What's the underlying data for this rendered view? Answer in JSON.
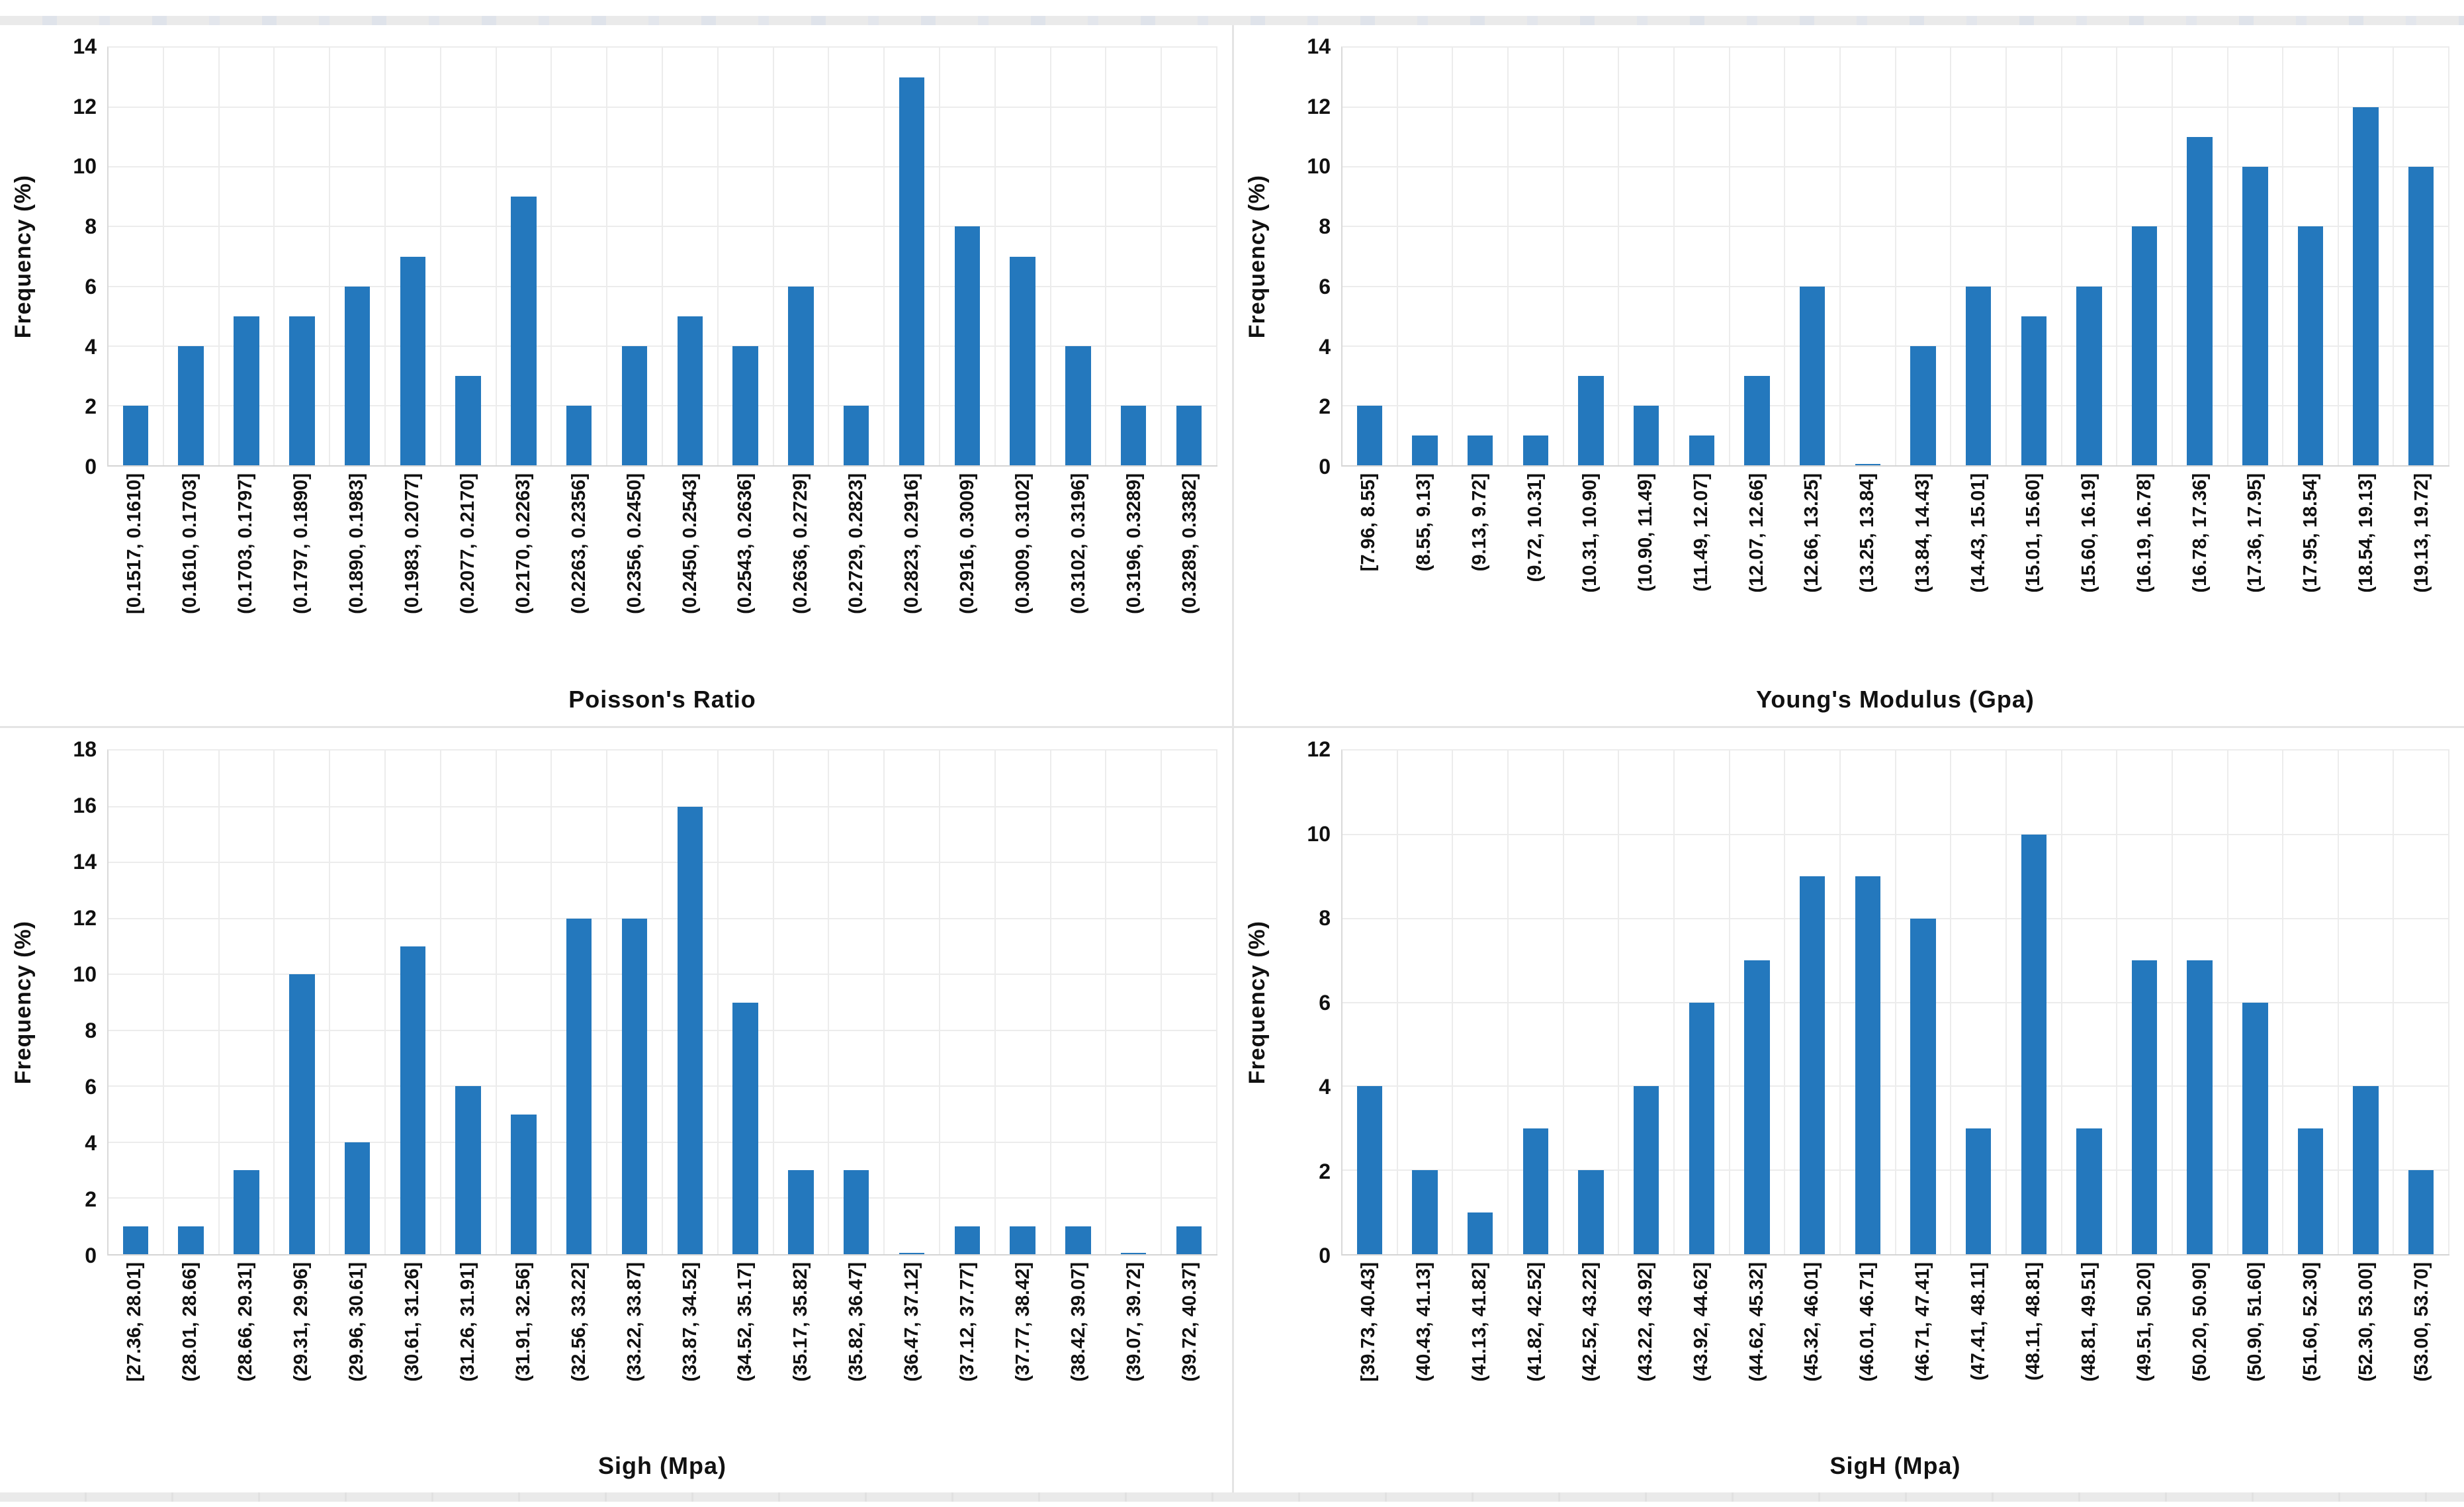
{
  "page": {
    "background": "#ffffff",
    "top_strip_color": "#e9e9e9",
    "bottom_strip_color": "#e9e9e9"
  },
  "colors": {
    "bar": "#2478bd",
    "gridline": "#ececec",
    "plot_border": "#d9d9d9",
    "text": "#111111"
  },
  "chart_data": [
    {
      "type": "bar",
      "title": "",
      "xlabel": "Poisson's Ratio",
      "ylabel": "Frequency (%)",
      "ylim": [
        0,
        14
      ],
      "ystep": 2,
      "yticks": [
        0,
        2,
        4,
        6,
        8,
        10,
        12,
        14
      ],
      "grid": true,
      "legend": "none",
      "categories": [
        "[0.1517, 0.1610]",
        "(0.1610, 0.1703]",
        "(0.1703, 0.1797]",
        "(0.1797, 0.1890]",
        "(0.1890, 0.1983]",
        "(0.1983, 0.2077]",
        "(0.2077, 0.2170]",
        "(0.2170, 0.2263]",
        "(0.2263, 0.2356]",
        "(0.2356, 0.2450]",
        "(0.2450, 0.2543]",
        "(0.2543, 0.2636]",
        "(0.2636, 0.2729]",
        "(0.2729, 0.2823]",
        "(0.2823, 0.2916]",
        "(0.2916, 0.3009]",
        "(0.3009, 0.3102]",
        "(0.3102, 0.3196]",
        "(0.3196, 0.3289]",
        "(0.3289, 0.3382]"
      ],
      "values": [
        2,
        4,
        5,
        5,
        6,
        7,
        3,
        9,
        2,
        4,
        5,
        4,
        6,
        2,
        13,
        8,
        7,
        4,
        2,
        2
      ]
    },
    {
      "type": "bar",
      "title": "",
      "xlabel": "Young's Modulus (Gpa)",
      "ylabel": "Frequency (%)",
      "ylim": [
        0,
        14
      ],
      "ystep": 2,
      "yticks": [
        0,
        2,
        4,
        6,
        8,
        10,
        12,
        14
      ],
      "grid": true,
      "legend": "none",
      "categories": [
        "[7.96, 8.55]",
        "(8.55, 9.13]",
        "(9.13, 9.72]",
        "(9.72, 10.31]",
        "(10.31, 10.90]",
        "(10.90, 11.49]",
        "(11.49, 12.07]",
        "(12.07, 12.66]",
        "(12.66, 13.25]",
        "(13.25, 13.84]",
        "(13.84, 14.43]",
        "(14.43, 15.01]",
        "(15.01, 15.60]",
        "(15.60, 16.19]",
        "(16.19, 16.78]",
        "(16.78, 17.36]",
        "(17.36, 17.95]",
        "(17.95, 18.54]",
        "(18.54, 19.13]",
        "(19.13, 19.72]"
      ],
      "values": [
        2,
        1,
        1,
        1,
        3,
        2,
        1,
        3,
        6,
        0.05,
        4,
        6,
        5,
        6,
        8,
        11,
        10,
        8,
        12,
        10
      ]
    },
    {
      "type": "bar",
      "title": "",
      "xlabel": "Sigh (Mpa)",
      "ylabel": "Frequency (%)",
      "ylim": [
        0,
        18
      ],
      "ystep": 2,
      "yticks": [
        0,
        2,
        4,
        6,
        8,
        10,
        12,
        14,
        16,
        18
      ],
      "grid": true,
      "legend": "none",
      "categories": [
        "[27.36, 28.01]",
        "(28.01, 28.66]",
        "(28.66, 29.31]",
        "(29.31, 29.96]",
        "(29.96, 30.61]",
        "(30.61, 31.26]",
        "(31.26, 31.91]",
        "(31.91, 32.56]",
        "(32.56, 33.22]",
        "(33.22, 33.87]",
        "(33.87, 34.52]",
        "(34.52, 35.17]",
        "(35.17, 35.82]",
        "(35.82, 36.47]",
        "(36.47, 37.12]",
        "(37.12, 37.77]",
        "(37.77, 38.42]",
        "(38.42, 39.07]",
        "(39.07, 39.72]",
        "(39.72, 40.37]"
      ],
      "values": [
        1,
        1,
        3,
        10,
        4,
        11,
        6,
        5,
        12,
        12,
        16,
        9,
        3,
        3,
        0.05,
        1,
        1,
        1,
        0.05,
        1
      ]
    },
    {
      "type": "bar",
      "title": "",
      "xlabel": "SigH (Mpa)",
      "ylabel": "Frequency (%)",
      "ylim": [
        0,
        12
      ],
      "ystep": 2,
      "yticks": [
        0,
        2,
        4,
        6,
        8,
        10,
        12
      ],
      "grid": true,
      "legend": "none",
      "categories": [
        "[39.73, 40.43]",
        "(40.43, 41.13]",
        "(41.13, 41.82]",
        "(41.82, 42.52]",
        "(42.52, 43.22]",
        "(43.22, 43.92]",
        "(43.92, 44.62]",
        "(44.62, 45.32]",
        "(45.32, 46.01]",
        "(46.01, 46.71]",
        "(46.71, 47.41]",
        "(47.41, 48.11]",
        "(48.11, 48.81]",
        "(48.81, 49.51]",
        "(49.51, 50.20]",
        "(50.20, 50.90]",
        "(50.90, 51.60]",
        "(51.60, 52.30]",
        "(52.30, 53.00]",
        "(53.00, 53.70]"
      ],
      "values": [
        4,
        2,
        1,
        3,
        2,
        4,
        6,
        7,
        9,
        9,
        8,
        3,
        10,
        3,
        7,
        7,
        6,
        3,
        4,
        2
      ]
    }
  ]
}
